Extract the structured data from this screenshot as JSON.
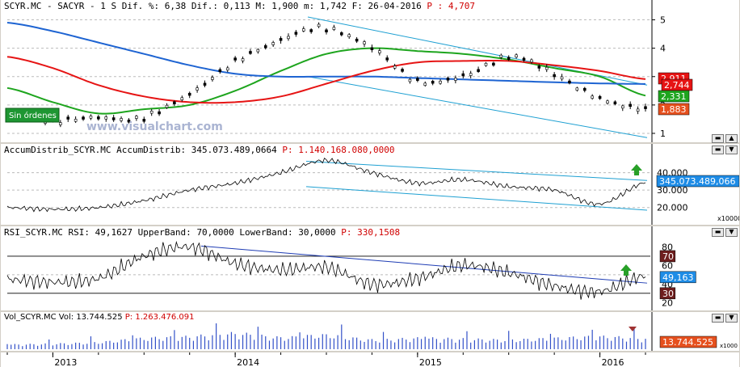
{
  "header": {
    "symbol": "SCYR.MC",
    "name": "SACYR",
    "period": "1 S",
    "dif_pct_label": "Dif. %:",
    "dif_pct": "6,38",
    "dif_label": "Dif.:",
    "dif": "0,113",
    "max_label": "M:",
    "max": "1,900",
    "min_label": "m:",
    "min": "1,742",
    "date_label": "F:",
    "date": "26-04-2016",
    "p_label": "P :",
    "p": "4,707"
  },
  "watermark": "www.visualchart.com",
  "order_badge": "Sin órdenes",
  "colors": {
    "price": "#000000",
    "ma_short": "#1ea51e",
    "ma_medium": "#1e64d2",
    "ma_long": "#e61414",
    "channel": "#1ea0d2",
    "rsi_trend": "#1e3cb4",
    "volume": "#3250c8",
    "up_arrow": "#28a028",
    "down_arrow": "#a03232"
  },
  "icons": [
    "up-arrow-icon",
    "down-arrow-icon",
    "collapse-icon",
    "expand-icon"
  ],
  "panel_price": {
    "y_ticks": [
      "5",
      "4",
      "3",
      "2",
      "1"
    ],
    "badges": [
      "2,911",
      "2,744",
      "2,331",
      "1,883"
    ]
  },
  "panel_ad": {
    "title": "AccumDistrib_SCYR.MC AccumDistrib:",
    "value": "345.073.489,0664",
    "p_label": "P:",
    "p": "1.140.168.080,0000",
    "y_ticks": [
      "40.000",
      "30.000",
      "20.000"
    ],
    "badge": "345.073.489,066",
    "multiplier": "x10000"
  },
  "panel_rsi": {
    "title": "RSI_SCYR.MC RSI:",
    "value": "49,1627",
    "upper_label": "UpperBand:",
    "upper": "70,0000",
    "lower_label": "LowerBand:",
    "lower": "30,0000",
    "p_label": "P:",
    "p": "330,1508",
    "y_ticks": [
      "80",
      "60",
      "40",
      "20"
    ],
    "badges": [
      "70",
      "49,163",
      "30"
    ]
  },
  "panel_vol": {
    "title": "Vol_SCYR.MC Vol:",
    "value": "13.744.525",
    "p_label": "P:",
    "p": "1.263.476.091",
    "badge": "13.744.525",
    "multiplier": "x1000"
  },
  "x_axis": {
    "labels": [
      "2013",
      "2014",
      "2015",
      "2016"
    ]
  },
  "chart_data": [
    {
      "type": "line",
      "panel": "price",
      "x": [
        "2012-10",
        "2013-01",
        "2013-04",
        "2013-07",
        "2013-10",
        "2014-01",
        "2014-04",
        "2014-07",
        "2014-10",
        "2015-01",
        "2015-04",
        "2015-07",
        "2015-10",
        "2016-01",
        "2016-04"
      ],
      "series": [
        {
          "values": [
            1.7,
            1.45,
            1.55,
            1.55,
            2.4,
            3.5,
            4.3,
            4.7,
            4.0,
            2.85,
            3.0,
            3.7,
            3.1,
            2.2,
            1.88
          ]
        },
        {
          "values": [
            2.6,
            2.1,
            1.7,
            1.85,
            2.0,
            2.5,
            3.2,
            3.8,
            4.0,
            3.9,
            3.8,
            3.6,
            3.3,
            3.0,
            2.33
          ]
        },
        {
          "values": [
            4.9,
            4.6,
            4.2,
            3.8,
            3.4,
            3.1,
            3.0,
            3.0,
            3.0,
            2.95,
            2.9,
            2.85,
            2.8,
            2.76,
            2.74
          ]
        },
        {
          "values": [
            3.7,
            3.3,
            2.7,
            2.3,
            2.1,
            2.1,
            2.3,
            2.75,
            3.2,
            3.5,
            3.55,
            3.55,
            3.4,
            3.2,
            2.91
          ]
        }
      ],
      "ylim": [
        0.8,
        5.3
      ]
    },
    {
      "type": "line",
      "panel": "accum_distrib",
      "x": [
        "2012-10",
        "2013-01",
        "2013-04",
        "2013-07",
        "2013-10",
        "2014-01",
        "2014-04",
        "2014-07",
        "2014-10",
        "2015-01",
        "2015-04",
        "2015-07",
        "2015-10",
        "2016-01",
        "2016-04"
      ],
      "values": [
        20000,
        19000,
        20000,
        24000,
        30000,
        34000,
        40000,
        47000,
        40000,
        34000,
        36000,
        32000,
        30000,
        22000,
        34507
      ],
      "ylim": [
        12000,
        50000
      ]
    },
    {
      "type": "line",
      "panel": "rsi",
      "x": [
        "2012-10",
        "2013-01",
        "2013-04",
        "2013-07",
        "2013-10",
        "2014-01",
        "2014-04",
        "2014-07",
        "2014-10",
        "2015-01",
        "2015-04",
        "2015-07",
        "2015-10",
        "2016-01",
        "2016-04"
      ],
      "values": [
        45,
        42,
        46,
        70,
        80,
        62,
        55,
        58,
        40,
        46,
        60,
        52,
        38,
        32,
        49.16
      ],
      "ylim": [
        15,
        90
      ]
    },
    {
      "type": "bar",
      "panel": "volume",
      "x": [
        "2012-10",
        "2013-01",
        "2013-04",
        "2013-07",
        "2013-10",
        "2014-01",
        "2014-04",
        "2014-07",
        "2014-10",
        "2015-01",
        "2015-04",
        "2015-07",
        "2015-10",
        "2016-01",
        "2016-04"
      ],
      "values": [
        6000,
        7000,
        9000,
        14000,
        16000,
        20000,
        15000,
        18000,
        12000,
        14000,
        13000,
        12000,
        14000,
        16000,
        13744
      ],
      "ylim": [
        0,
        30000
      ]
    }
  ]
}
